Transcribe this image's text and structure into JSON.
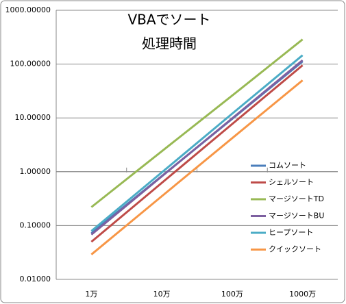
{
  "chart_data": {
    "type": "line",
    "title_lines": [
      "VBAでソート",
      "処理時間"
    ],
    "categories": [
      "1万",
      "10万",
      "100万",
      "1000万"
    ],
    "series": [
      {
        "name": "コムソート",
        "color": "#4a7ebb",
        "values": [
          0.072,
          0.83,
          9.6,
          112
        ]
      },
      {
        "name": "シェルソート",
        "color": "#be4b48",
        "values": [
          0.05,
          0.62,
          7.7,
          95
        ]
      },
      {
        "name": "マージソートTD",
        "color": "#98b954",
        "values": [
          0.22,
          2.4,
          26,
          287
        ]
      },
      {
        "name": "マージソートBU",
        "color": "#7d60a0",
        "values": [
          0.068,
          0.82,
          9.8,
          118
        ]
      },
      {
        "name": "ヒープソート",
        "color": "#4bacc6",
        "values": [
          0.079,
          0.97,
          12,
          146
        ]
      },
      {
        "name": "クイックソート",
        "color": "#f79646",
        "values": [
          0.029,
          0.35,
          4.2,
          50
        ]
      }
    ],
    "ylog": true,
    "ylim": [
      0.01,
      1000
    ],
    "yticks": [
      {
        "value": 0.01,
        "label": "0.01000"
      },
      {
        "value": 0.1,
        "label": "0.10000"
      },
      {
        "value": 1,
        "label": "1.00000"
      },
      {
        "value": 10,
        "label": "10.00000"
      },
      {
        "value": 100,
        "label": "100.00000"
      },
      {
        "value": 1000,
        "label": "1000.00000"
      }
    ],
    "x_axis_crosses": 1,
    "grid": true,
    "legend": "right"
  }
}
